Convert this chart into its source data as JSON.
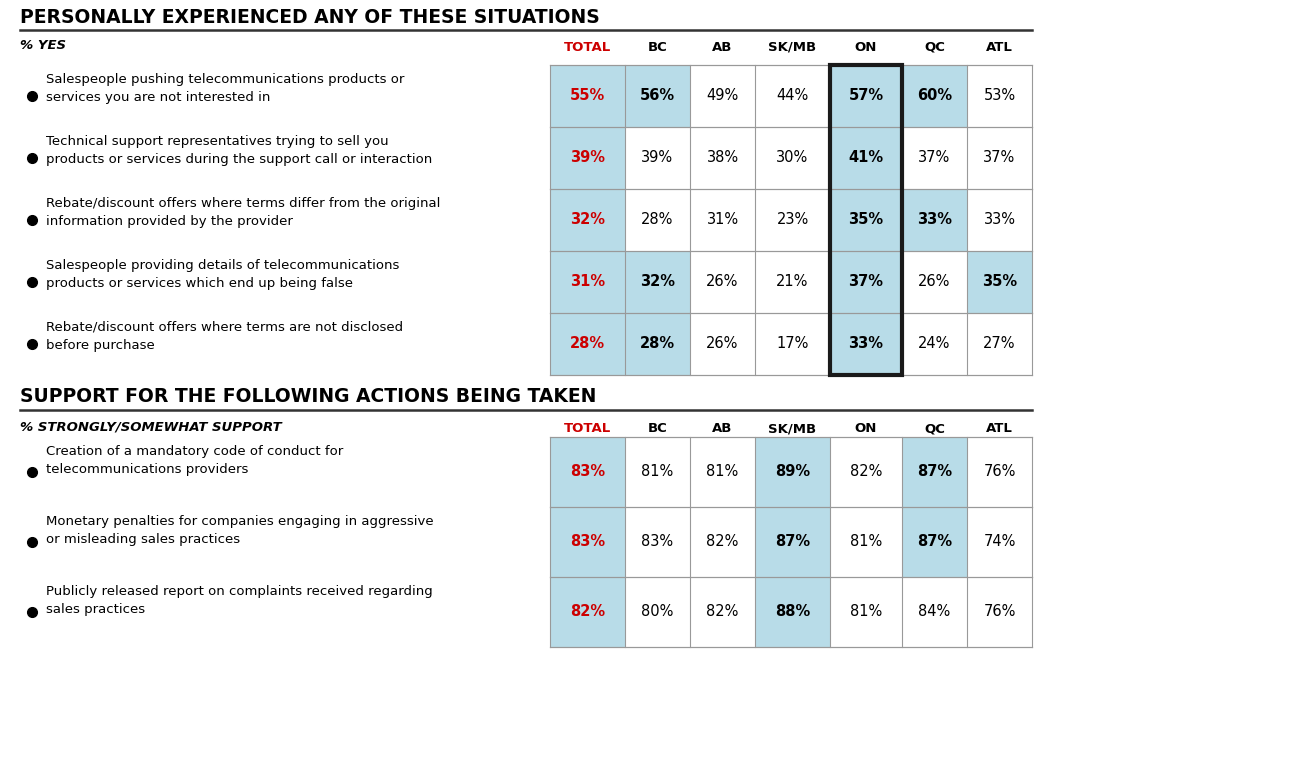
{
  "title1": "PERSONALLY EXPERIENCED ANY OF THESE SITUATIONS",
  "title2": "SUPPORT FOR THE FOLLOWING ACTIONS BEING TAKEN",
  "subtitle1": "% YES",
  "subtitle2": "% STRONGLY/SOMEWHAT SUPPORT",
  "columns": [
    "TOTAL",
    "BC",
    "AB",
    "SK/MB",
    "ON",
    "QC",
    "ATL"
  ],
  "section1_rows": [
    {
      "label": "Salespeople pushing telecommunications products or\nservices you are not interested in",
      "values": [
        "55%",
        "56%",
        "49%",
        "44%",
        "57%",
        "60%",
        "53%"
      ],
      "cell_highlights": [
        true,
        true,
        false,
        false,
        true,
        true,
        false
      ],
      "bold_cells": [
        0,
        1,
        4,
        5
      ],
      "red_cells": [
        0
      ]
    },
    {
      "label": "Technical support representatives trying to sell you\nproducts or services during the support call or interaction",
      "values": [
        "39%",
        "39%",
        "38%",
        "30%",
        "41%",
        "37%",
        "37%"
      ],
      "cell_highlights": [
        true,
        false,
        false,
        false,
        true,
        false,
        false
      ],
      "bold_cells": [
        0,
        4
      ],
      "red_cells": [
        0
      ]
    },
    {
      "label": "Rebate/discount offers where terms differ from the original\ninformation provided by the provider",
      "values": [
        "32%",
        "28%",
        "31%",
        "23%",
        "35%",
        "33%",
        "33%"
      ],
      "cell_highlights": [
        true,
        false,
        false,
        false,
        true,
        true,
        false
      ],
      "bold_cells": [
        0,
        4,
        5
      ],
      "red_cells": [
        0
      ]
    },
    {
      "label": "Salespeople providing details of telecommunications\nproducts or services which end up being false",
      "values": [
        "31%",
        "32%",
        "26%",
        "21%",
        "37%",
        "26%",
        "35%"
      ],
      "cell_highlights": [
        true,
        true,
        false,
        false,
        true,
        false,
        true
      ],
      "bold_cells": [
        0,
        1,
        4,
        6
      ],
      "red_cells": [
        0
      ]
    },
    {
      "label": "Rebate/discount offers where terms are not disclosed\nbefore purchase",
      "values": [
        "28%",
        "28%",
        "26%",
        "17%",
        "33%",
        "24%",
        "27%"
      ],
      "cell_highlights": [
        true,
        true,
        false,
        false,
        true,
        false,
        false
      ],
      "bold_cells": [
        0,
        1,
        4
      ],
      "red_cells": [
        0
      ]
    }
  ],
  "section2_rows": [
    {
      "label": "Creation of a mandatory code of conduct for\ntelecommunications providers",
      "values": [
        "83%",
        "81%",
        "81%",
        "89%",
        "82%",
        "87%",
        "76%"
      ],
      "cell_highlights": [
        true,
        false,
        false,
        true,
        false,
        true,
        false
      ],
      "bold_cells": [
        0,
        3,
        5
      ],
      "red_cells": [
        0
      ]
    },
    {
      "label": "Monetary penalties for companies engaging in aggressive\nor misleading sales practices",
      "values": [
        "83%",
        "83%",
        "82%",
        "87%",
        "81%",
        "87%",
        "74%"
      ],
      "cell_highlights": [
        true,
        false,
        false,
        true,
        false,
        true,
        false
      ],
      "bold_cells": [
        0,
        3,
        5
      ],
      "red_cells": [
        0
      ]
    },
    {
      "label": "Publicly released report on complaints received regarding\nsales practices",
      "values": [
        "82%",
        "80%",
        "82%",
        "88%",
        "81%",
        "84%",
        "76%"
      ],
      "cell_highlights": [
        true,
        false,
        false,
        true,
        false,
        false,
        false
      ],
      "bold_cells": [
        0,
        3
      ],
      "red_cells": [
        0
      ]
    }
  ],
  "light_blue": "#b8dce8",
  "red": "#cc0000",
  "black": "#000000",
  "white": "#ffffff",
  "on_border_color": "#1a1a1a",
  "grid_color": "#999999",
  "title_underline_color": "#333333"
}
